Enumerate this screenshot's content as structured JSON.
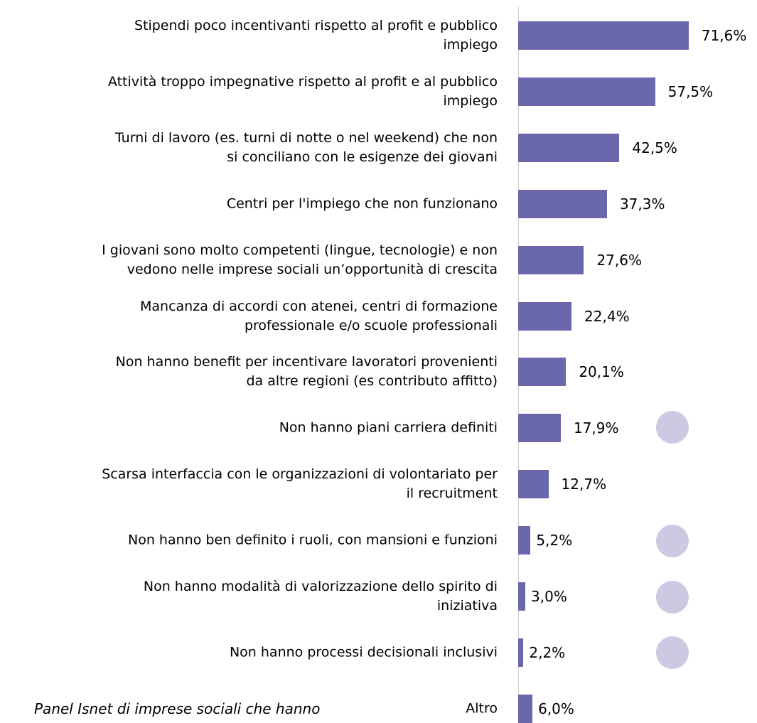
{
  "chart_data": {
    "type": "bar",
    "orientation": "horizontal",
    "categories": [
      "Stipendi poco incentivanti rispetto al profit e pubblico\nimpiego",
      "Attività troppo impegnative rispetto al profit e al pubblico\nimpiego",
      "Turni di lavoro (es. turni di notte o nel weekend) che non\nsi conciliano con le esigenze dei giovani",
      "Centri per l'impiego che non funzionano",
      "I giovani sono molto competenti (lingue, tecnologie) e non\nvedono nelle imprese sociali un’opportunità di crescita",
      "Mancanza di accordi con atenei, centri di formazione\nprofessionale e/o scuole professionali",
      "Non hanno benefit per incentivare lavoratori provenienti\nda altre regioni (es contributo affitto)",
      "Non hanno piani carriera definiti",
      "Scarsa interfaccia con le organizzazioni di volontariato per\nil recruitment",
      "Non hanno ben definito i ruoli, con mansioni e funzioni",
      "Non hanno modalità di valorizzazione dello spirito di\niniziativa",
      "Non hanno processi decisionali inclusivi",
      "Altro"
    ],
    "values": [
      71.6,
      57.5,
      42.5,
      37.3,
      27.6,
      22.4,
      20.1,
      17.9,
      12.7,
      5.2,
      3.0,
      2.2,
      6.0
    ],
    "value_labels": [
      "71,6%",
      "57,5%",
      "42,5%",
      "37,3%",
      "27,6%",
      "22,4%",
      "20,1%",
      "17,9%",
      "12,7%",
      "5,2%",
      "3,0%",
      "2,2%",
      "6,0%"
    ],
    "color": "#6a67ad",
    "xlim": [
      0,
      100
    ],
    "note": "Panel Isnet di imprese sociali che hanno"
  }
}
